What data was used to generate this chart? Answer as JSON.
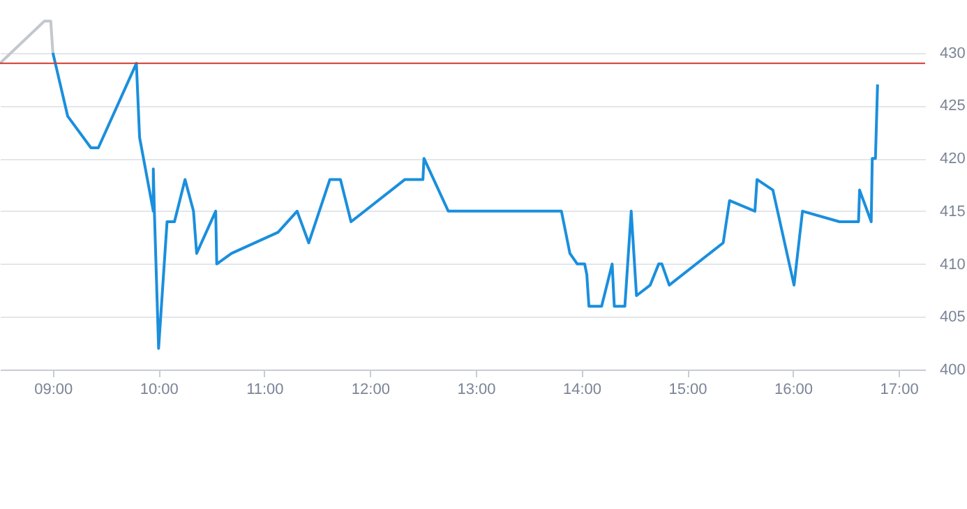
{
  "chart_data": {
    "type": "line",
    "xlim": [
      8.5,
      17.25
    ],
    "ylim": [
      400,
      435
    ],
    "xticks": [
      {
        "value": 9,
        "label": "09:00"
      },
      {
        "value": 10,
        "label": "10:00"
      },
      {
        "value": 11,
        "label": "11:00"
      },
      {
        "value": 12,
        "label": "12:00"
      },
      {
        "value": 13,
        "label": "13:00"
      },
      {
        "value": 14,
        "label": "14:00"
      },
      {
        "value": 15,
        "label": "15:00"
      },
      {
        "value": 16,
        "label": "16:00"
      },
      {
        "value": 17,
        "label": "17:00"
      }
    ],
    "yticks": [
      400,
      405,
      410,
      415,
      420,
      425,
      430
    ],
    "grid": "y",
    "marker": "none",
    "line_style": "solid",
    "ref_lines": [
      {
        "axis": "y",
        "value": 429,
        "color": "#d0392f"
      }
    ],
    "series": [
      {
        "color": "#c3c7cf",
        "x": [
          8.5,
          8.92,
          8.98,
          9.0
        ],
        "values": [
          429,
          433,
          433,
          430
        ]
      },
      {
        "color": "#1a8fdd",
        "x": [
          9.0,
          9.14,
          9.36,
          9.43,
          9.79,
          9.82,
          9.95,
          9.95,
          9.96,
          10.0,
          10.08,
          10.15,
          10.25,
          10.33,
          10.36,
          10.54,
          10.55,
          10.69,
          11.13,
          11.31,
          11.42,
          11.62,
          11.72,
          11.82,
          12.33,
          12.5,
          12.51,
          12.74,
          13.81,
          13.89,
          13.96,
          14.03,
          14.05,
          14.07,
          14.19,
          14.29,
          14.31,
          14.41,
          14.47,
          14.52,
          14.65,
          14.73,
          14.76,
          14.83,
          15.34,
          15.4,
          15.64,
          15.66,
          15.81,
          16.01,
          16.09,
          16.44,
          16.62,
          16.63,
          16.74,
          16.75,
          16.78,
          16.8
        ],
        "values": [
          430,
          424,
          421,
          421,
          429,
          422,
          415,
          419,
          415,
          402,
          414,
          414,
          418,
          415,
          411,
          415,
          410,
          411,
          413,
          415,
          412,
          418,
          418,
          414,
          418,
          418,
          420,
          415,
          415,
          411,
          410,
          410,
          409,
          406,
          406,
          410,
          406,
          406,
          415,
          407,
          408,
          410,
          410,
          408,
          412,
          416,
          415,
          418,
          417,
          408,
          415,
          414,
          414,
          417,
          414,
          420,
          420,
          427
        ]
      }
    ]
  }
}
